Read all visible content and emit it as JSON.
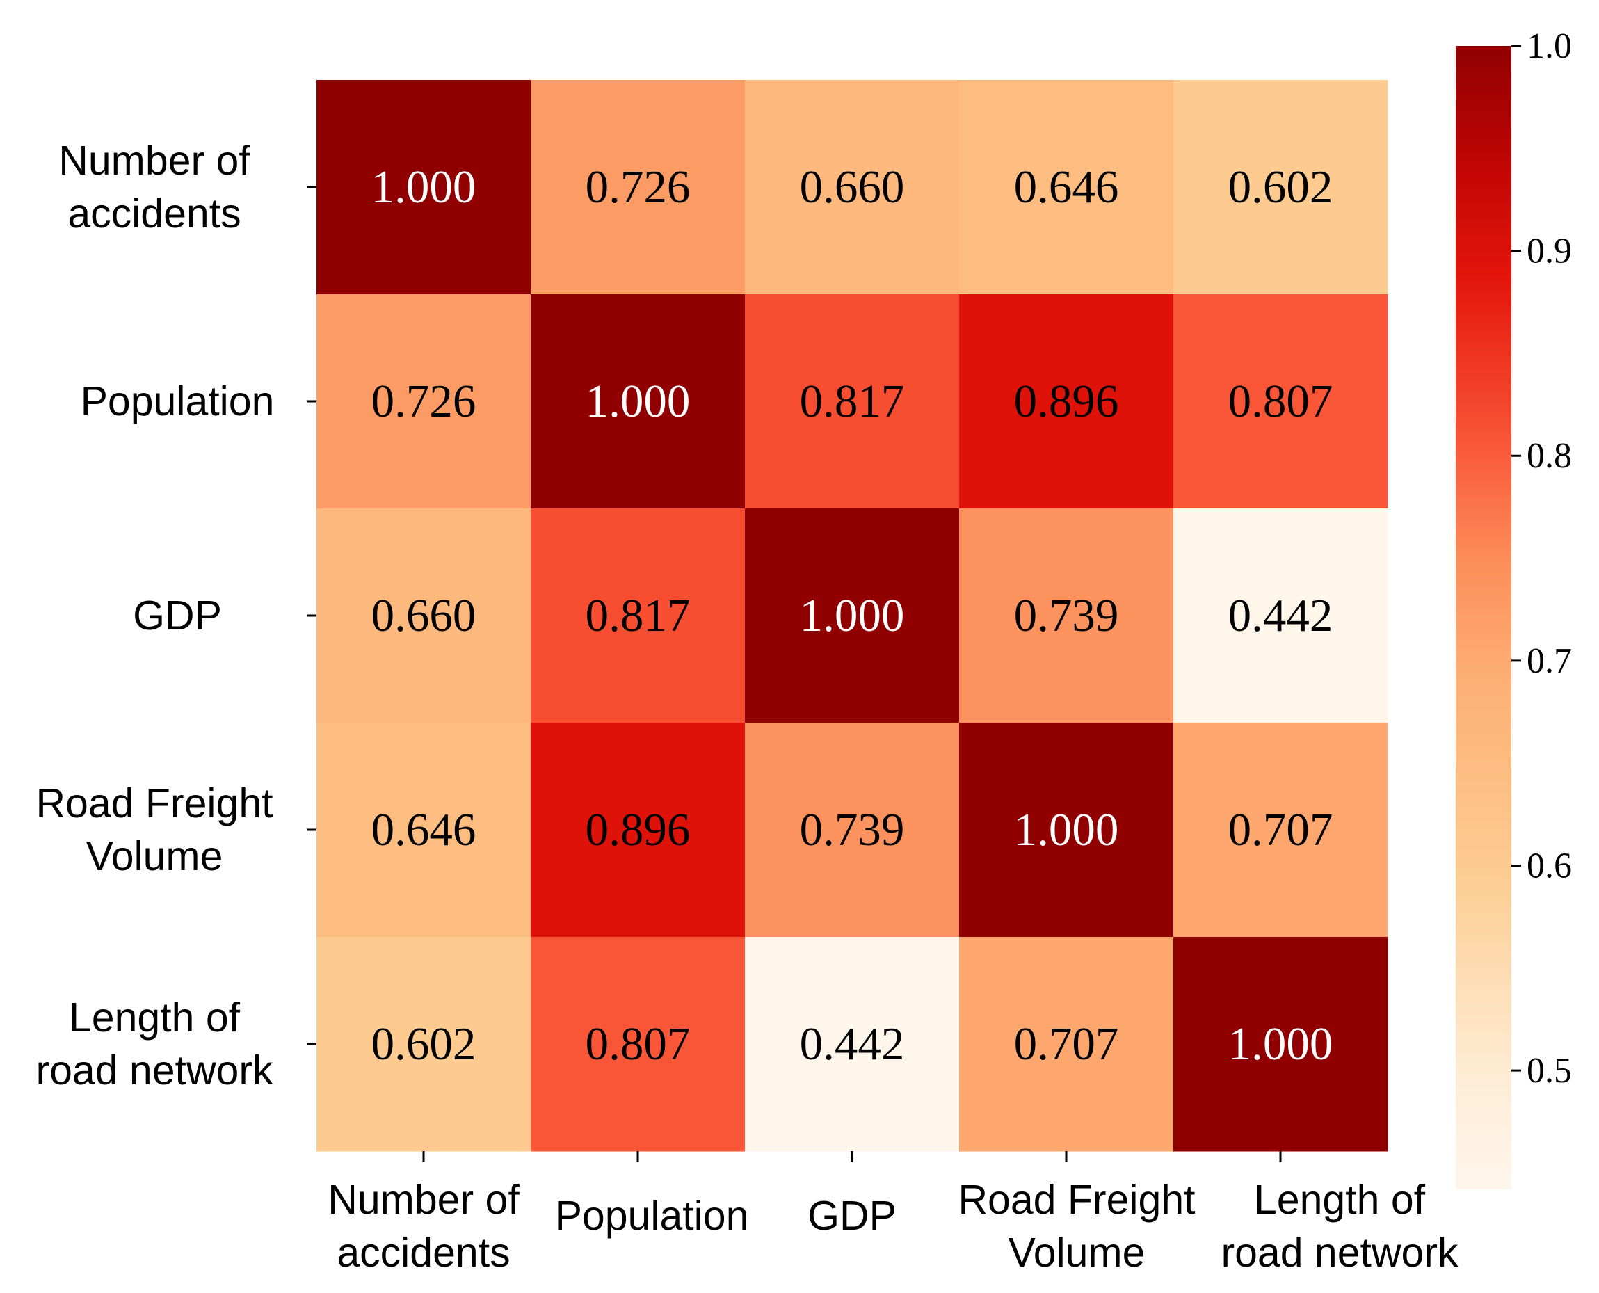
{
  "chart_data": {
    "type": "heatmap",
    "title": "",
    "labels": [
      "Number of accidents",
      "Population",
      "GDP",
      "Road Freight Volume",
      "Length of road network"
    ],
    "x_tick_labels": [
      [
        "Number of",
        "accidents"
      ],
      [
        "Population"
      ],
      [
        "GDP"
      ],
      [
        "Road Freight",
        "Volume"
      ],
      [
        "Length of",
        "road network"
      ]
    ],
    "y_tick_labels": [
      [
        "Number of",
        "accidents"
      ],
      [
        "Population"
      ],
      [
        "GDP"
      ],
      [
        "Road Freight",
        "Volume"
      ],
      [
        "Length of",
        "road network"
      ]
    ],
    "matrix": [
      [
        1.0,
        0.726,
        0.66,
        0.646,
        0.602
      ],
      [
        0.726,
        1.0,
        0.817,
        0.896,
        0.807
      ],
      [
        0.66,
        0.817,
        1.0,
        0.739,
        0.442
      ],
      [
        0.646,
        0.896,
        0.739,
        1.0,
        0.707
      ],
      [
        0.602,
        0.807,
        0.442,
        0.707,
        1.0
      ]
    ],
    "value_labels": [
      [
        "1.000",
        "0.726",
        "0.660",
        "0.646",
        "0.602"
      ],
      [
        "0.726",
        "1.000",
        "0.817",
        "0.896",
        "0.807"
      ],
      [
        "0.660",
        "0.817",
        "1.000",
        "0.739",
        "0.442"
      ],
      [
        "0.646",
        "0.896",
        "0.739",
        "1.000",
        "0.707"
      ],
      [
        "0.602",
        "0.807",
        "0.442",
        "0.707",
        "1.000"
      ]
    ],
    "colormap": "OrRd",
    "colorbar": {
      "min": 0.442,
      "max": 1.0,
      "ticks": [
        0.5,
        0.6,
        0.7,
        0.8,
        0.9,
        1.0
      ],
      "tick_labels": [
        "0.5",
        "0.6",
        "0.7",
        "0.8",
        "0.9",
        "1.0"
      ]
    },
    "xlabel": "",
    "ylabel": ""
  }
}
